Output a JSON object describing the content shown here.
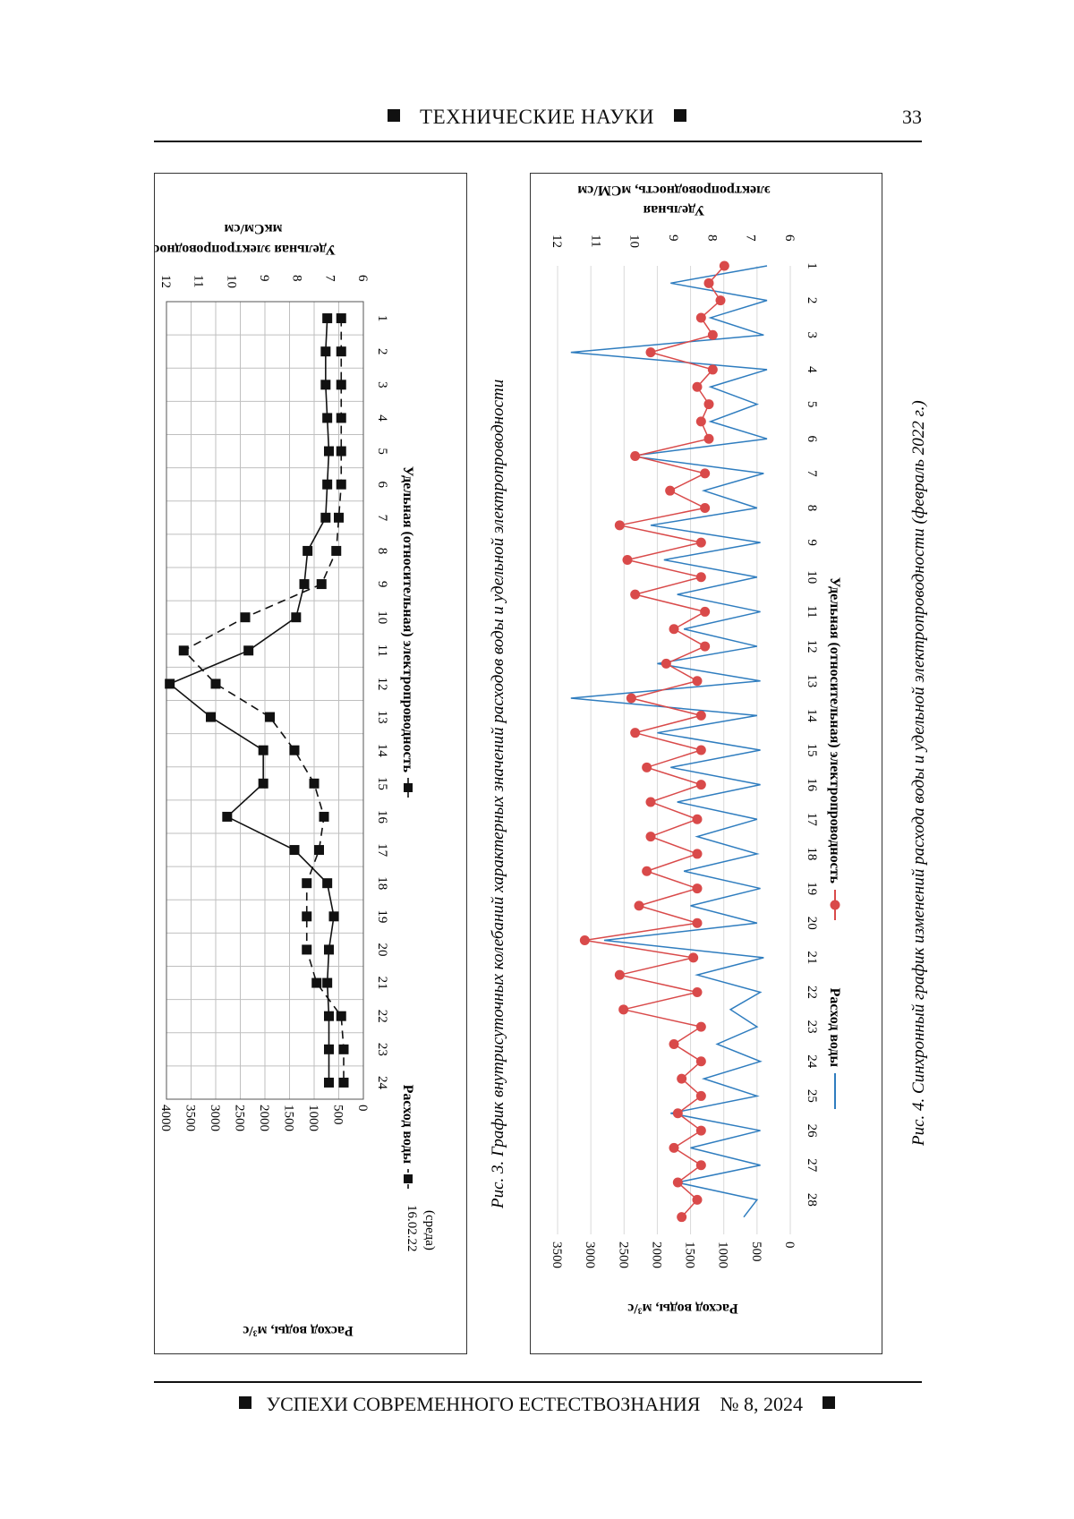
{
  "header": {
    "section_title": "ТЕХНИЧЕСКИЕ НАУКИ",
    "page_number": "33"
  },
  "footer": {
    "journal": "УСПЕХИ СОВРЕМЕННОГО ЕСТЕСТВОЗНАНИЯ",
    "issue": "№ 8, 2024"
  },
  "colors": {
    "water": "#2f7dbf",
    "conductivity": "#d94a4a",
    "grid": "#bfbfbf",
    "ink": "#111111"
  },
  "chart_data": [
    {
      "type": "line",
      "orientation": "rotated 90° clockwise on page",
      "caption": "Рис. 3. График внутрисуточных колебаний характерных значений расходов воды и удельной электропроводности",
      "date_label": "16.02.22",
      "day_label": "(среда)",
      "x": [
        1,
        2,
        3,
        4,
        5,
        6,
        7,
        8,
        9,
        10,
        11,
        12,
        13,
        14,
        15,
        16,
        17,
        18,
        19,
        20,
        21,
        22,
        23,
        24
      ],
      "ylabel": "Расход воды, м³/с",
      "y2label_line1": "Удельная электропроводность,",
      "y2label_line2": "мкСм/см",
      "ylim": [
        0,
        4000
      ],
      "yticks": [
        0,
        500,
        1000,
        1500,
        2000,
        2500,
        3000,
        3500,
        4000
      ],
      "y2lim": [
        6,
        12
      ],
      "y2ticks": [
        6,
        7,
        8,
        9,
        10,
        11,
        12
      ],
      "grid": true,
      "legend_position": "bottom",
      "series": [
        {
          "name": "Расход воды",
          "axis": "left",
          "style": "dashed",
          "marker": "square",
          "values": [
            450,
            450,
            450,
            450,
            450,
            450,
            500,
            550,
            850,
            2400,
            3650,
            3000,
            1900,
            1400,
            1000,
            800,
            900,
            1150,
            1150,
            1150,
            950,
            450,
            400,
            400
          ]
        },
        {
          "name": "Удельная (относительная) электропроводность",
          "axis": "right",
          "style": "solid",
          "marker": "square",
          "values": [
            7.1,
            7.15,
            7.15,
            7.1,
            7.05,
            7.1,
            7.15,
            7.7,
            7.8,
            8.05,
            9.5,
            11.9,
            10.65,
            9.05,
            9.05,
            10.15,
            8.1,
            7.1,
            6.9,
            7.05,
            7.1,
            7.05,
            7.05,
            7.05
          ]
        }
      ]
    },
    {
      "type": "line",
      "orientation": "rotated 90° clockwise on page",
      "caption": "Рис. 4. Синхронный график изменений расхода воды и удельной электропроводности (февраль 2022 г.)",
      "x_ticks": [
        1,
        2,
        3,
        4,
        5,
        6,
        7,
        8,
        9,
        10,
        11,
        12,
        13,
        14,
        15,
        16,
        17,
        18,
        19,
        20,
        21,
        22,
        23,
        24,
        25,
        26,
        27,
        28
      ],
      "xlim": [
        1,
        29
      ],
      "ylabel": "Расход воды, м³/с",
      "y2label_line1": "Удельная",
      "y2label_line2": "электропроводность, мСМ/см",
      "ylim": [
        0,
        3500
      ],
      "yticks": [
        0,
        500,
        1000,
        1500,
        2000,
        2500,
        3000,
        3500
      ],
      "y2lim": [
        6,
        12
      ],
      "y2ticks": [
        6,
        7,
        8,
        9,
        10,
        11,
        12
      ],
      "grid": true,
      "legend_position": "bottom",
      "series": [
        {
          "name": "Расход воды",
          "axis": "left",
          "style": "solid",
          "marker": "none",
          "x": [
            1,
            1.5,
            2,
            2.5,
            3,
            3.5,
            4,
            4.5,
            5,
            5.5,
            6,
            6.5,
            7,
            7.5,
            8,
            8.5,
            9,
            9.5,
            10,
            10.5,
            11,
            11.5,
            12,
            12.5,
            13,
            13.5,
            14,
            14.5,
            15,
            15.5,
            16,
            16.5,
            17,
            17.5,
            18,
            18.5,
            19,
            19.5,
            20,
            20.5,
            21,
            21.5,
            22,
            22.5,
            23,
            23.5,
            24,
            24.5,
            25,
            25.5,
            26,
            26.5,
            27,
            27.5,
            28,
            28.5
          ],
          "values": [
            350,
            1800,
            350,
            1200,
            400,
            3300,
            350,
            1200,
            500,
            1200,
            350,
            2400,
            400,
            1300,
            500,
            2100,
            450,
            1900,
            500,
            1700,
            450,
            1600,
            500,
            2000,
            450,
            3300,
            500,
            2000,
            450,
            1800,
            450,
            1700,
            500,
            1400,
            500,
            1600,
            450,
            1500,
            500,
            2800,
            400,
            1400,
            450,
            900,
            500,
            1100,
            450,
            1300,
            500,
            1800,
            450,
            1500,
            450,
            1700,
            500,
            700
          ]
        },
        {
          "name": "Удельная (относительная) электропроводность",
          "axis": "right",
          "style": "solid",
          "marker": "circle",
          "x": [
            1,
            1.5,
            2,
            2.5,
            3,
            3.5,
            4,
            4.5,
            5,
            5.5,
            6,
            6.5,
            7,
            7.5,
            8,
            8.5,
            9,
            9.5,
            10,
            10.5,
            11,
            11.5,
            12,
            12.5,
            13,
            13.5,
            14,
            14.5,
            15,
            15.5,
            16,
            16.5,
            17,
            17.5,
            18,
            18.5,
            19,
            19.5,
            20,
            20.5,
            21,
            21.5,
            22,
            22.5,
            23,
            23.5,
            24,
            24.5,
            25,
            25.5,
            26,
            26.5,
            27,
            27.5,
            28,
            28.5
          ],
          "values": [
            7.7,
            8.1,
            7.8,
            8.3,
            8.0,
            9.6,
            8.0,
            8.4,
            8.1,
            8.3,
            8.1,
            10.0,
            8.2,
            9.1,
            8.2,
            10.4,
            8.3,
            10.2,
            8.3,
            10.0,
            8.2,
            9.0,
            8.2,
            9.2,
            8.4,
            10.1,
            8.3,
            10.0,
            8.3,
            9.7,
            8.3,
            9.6,
            8.4,
            9.6,
            8.4,
            9.7,
            8.4,
            9.9,
            8.4,
            11.3,
            8.5,
            10.4,
            8.4,
            10.3,
            8.3,
            9.0,
            8.3,
            8.8,
            8.3,
            8.9,
            8.3,
            9.0,
            8.3,
            8.9,
            8.4,
            8.8
          ]
        }
      ]
    }
  ]
}
